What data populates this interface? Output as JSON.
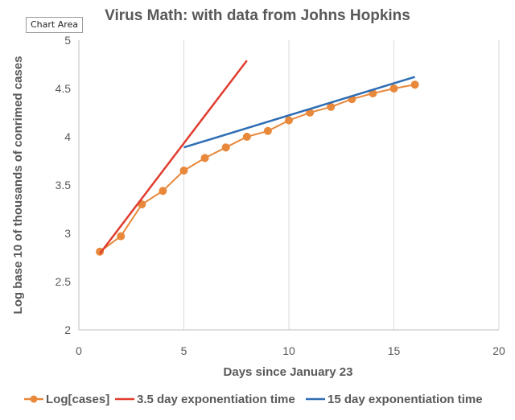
{
  "tooltip": "Chart Area",
  "chart_data": {
    "type": "line",
    "title": "Virus Math: with data from Johns Hopkins",
    "xlabel": "Days since January 23",
    "ylabel": "Log base 10 of thousands of conrimed cases",
    "xlim": [
      0,
      20
    ],
    "ylim": [
      2,
      5
    ],
    "x_ticks": [
      0,
      5,
      10,
      15,
      20
    ],
    "y_ticks": [
      2,
      2.5,
      3,
      3.5,
      4,
      4.5,
      5
    ],
    "x_tick_labels": [
      "0",
      "5",
      "10",
      "15",
      "20"
    ],
    "y_tick_labels": [
      "2",
      "2.5",
      "3",
      "3.5",
      "4",
      "4.5",
      "5"
    ],
    "grid": "vertical",
    "legend_position": "bottom",
    "series": [
      {
        "name": "Log[cases]",
        "color": "#E8883A",
        "markers": true,
        "x": [
          1,
          2,
          3,
          4,
          5,
          6,
          7,
          8,
          9,
          10,
          11,
          12,
          13,
          14,
          15,
          16
        ],
        "y": [
          2.81,
          2.97,
          3.3,
          3.44,
          3.65,
          3.78,
          3.89,
          4.0,
          4.06,
          4.17,
          4.25,
          4.31,
          4.39,
          4.45,
          4.5,
          4.54
        ]
      },
      {
        "name": "3.5 day exponentiation time",
        "color": "#E03C2E",
        "markers": false,
        "x": [
          1,
          8
        ],
        "y": [
          2.79,
          4.79
        ]
      },
      {
        "name": "15 day exponentiation time",
        "color": "#2E6DB4",
        "markers": false,
        "x": [
          5,
          16
        ],
        "y": [
          3.89,
          4.62
        ]
      }
    ]
  }
}
